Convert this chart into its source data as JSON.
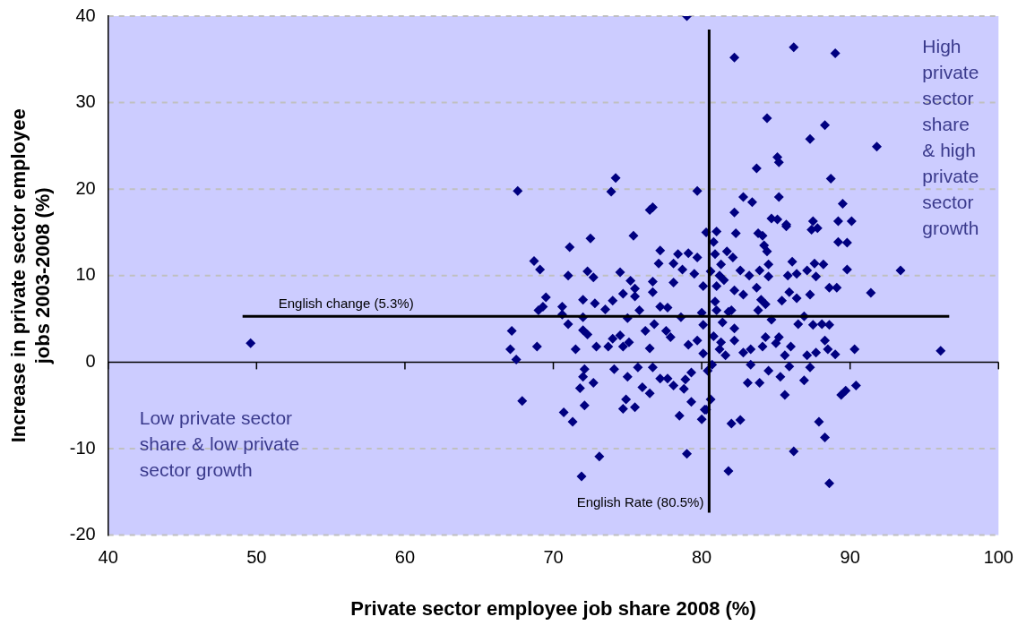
{
  "chart_data": {
    "type": "scatter",
    "xlabel": "Private sector employee job share 2008 (%)",
    "ylabel": "Increase in private sector employee jobs 2003-2008 (%)",
    "xlim": [
      40,
      100
    ],
    "xticks": [
      40,
      50,
      60,
      70,
      80,
      90,
      100
    ],
    "ylim": [
      -20,
      40
    ],
    "yticks": [
      -20,
      -10,
      0,
      10,
      20,
      30,
      40
    ],
    "grid": "y",
    "marker": "diamond",
    "legend": false,
    "ref_lines": [
      {
        "axis": "y",
        "value": 5.3,
        "label": "English change (5.3%)",
        "color": "#000000"
      },
      {
        "axis": "x",
        "value": 80.5,
        "label": "English Rate (80.5%)",
        "color": "#000000"
      }
    ],
    "annotations": [
      "High private sector share & high private sector growth",
      "Low private sector share & low private sector growth"
    ],
    "series": [
      {
        "color": "#000080",
        "x": [
          49.6,
          79,
          67.6,
          74.2,
          73.9,
          79.7,
          76.5,
          76.7,
          75.4,
          72.5,
          71.1,
          68.7,
          69.1,
          71.0,
          72.3,
          72.7,
          74.5,
          75.2,
          76.7,
          77.2,
          77.1,
          78.4,
          79.1,
          79.7,
          80.3,
          78.1,
          78.7,
          78.1,
          79.5,
          76.7,
          75.5,
          75.5,
          74.7,
          69.5,
          69.0,
          69.3,
          70.6,
          72.0,
          72.8,
          74.0,
          73.5,
          70.6,
          72.0,
          75.8,
          77.2,
          77.7,
          78.6,
          75.0,
          71.0,
          72.0,
          72.3,
          67.2,
          76.8,
          76.2,
          77.6,
          77.9,
          67.1,
          68.9,
          71.5,
          72.9,
          73.7,
          74.0,
          74.5,
          74.7,
          75.1,
          76.5,
          79.1,
          79.7,
          80.0,
          80.1,
          80.1,
          67.5,
          72.1,
          72.0,
          72.7,
          71.8,
          74.1,
          75.0,
          75.7,
          76.0,
          76.5,
          74.9,
          75.5,
          74.7,
          76.7,
          77.2,
          77.7,
          78.1,
          78.9,
          78.8,
          79.3,
          78.5,
          80.0,
          80.2,
          79.3,
          67.9,
          70.7,
          71.3,
          72.1,
          73.1,
          71.9,
          79.0,
          82.3,
          81.0,
          80.8,
          83.8,
          84.1,
          85.7,
          87.4,
          87.8,
          89.2,
          89.8,
          84.2,
          84.4,
          81.7,
          82.1,
          89.8,
          93.4,
          91.4,
          88.6,
          89.1,
          86.1,
          87.6,
          88.2,
          85.8,
          86.4,
          87.1,
          87.7,
          84.5,
          84.5,
          83.9,
          82.6,
          83.2,
          81.2,
          81.0,
          82.2,
          82.8,
          83.7,
          84.0,
          84.3,
          85.4,
          85.9,
          86.4,
          87.3,
          83.8,
          81.0,
          82.0,
          81.4,
          82.2,
          84.7,
          86.5,
          86.9,
          87.5,
          88.1,
          88.6,
          90.3,
          96.1,
          88.3,
          88.5,
          89.0,
          87.7,
          87.1,
          86.0,
          85.6,
          84.3,
          84.1,
          85.0,
          85.2,
          83.3,
          82.8,
          81.2,
          81.6,
          82.2,
          83.3,
          84.5,
          85.9,
          87.3,
          83.1,
          83.9,
          85.3,
          86.9,
          85.6,
          89.4,
          89.7,
          90.4,
          82.0,
          82.6,
          87.9,
          88.3,
          86.2,
          81.8,
          88.6,
          80.4,
          80.6,
          80.3,
          82.2,
          86.2,
          89.0,
          84.4,
          88.3,
          87.3,
          91.8,
          85.1,
          85.2,
          83.7,
          88.7,
          82.8,
          83.4,
          85.2,
          82.2,
          89.5,
          84.7,
          85.1,
          85.7,
          87.5,
          89.2,
          90.1,
          80.9,
          80.6,
          81.3,
          81.5,
          80.9,
          81.8,
          80.8,
          81.3,
          80.1,
          80.7
        ],
        "values": [
          2.2,
          40,
          19.8,
          21.3,
          19.7,
          19.8,
          17.6,
          17.9,
          14.6,
          14.3,
          13.3,
          11.7,
          10.7,
          10.0,
          10.5,
          9.8,
          10.4,
          9.4,
          9.3,
          12.9,
          11.4,
          12.5,
          12.6,
          12.1,
          15.0,
          11.4,
          10.7,
          9.2,
          10.2,
          8.1,
          8.5,
          7.6,
          7.9,
          7.5,
          6.0,
          6.4,
          6.4,
          7.2,
          6.8,
          7.1,
          6.1,
          5.5,
          5.2,
          6.0,
          6.4,
          6.3,
          5.2,
          5.1,
          4.4,
          3.7,
          3.2,
          3.6,
          4.4,
          3.6,
          3.6,
          2.9,
          1.5,
          1.8,
          1.5,
          1.8,
          1.8,
          2.7,
          3.1,
          1.8,
          2.3,
          1.6,
          2.0,
          2.5,
          5.7,
          4.3,
          8.8,
          0.3,
          -0.8,
          -1.7,
          -2.4,
          -3.0,
          -0.8,
          -1.7,
          -0.6,
          -2.9,
          -3.6,
          -4.3,
          -5.2,
          -5.4,
          -0.6,
          -1.9,
          -1.9,
          -2.7,
          -2.0,
          -3.1,
          -4.6,
          -6.2,
          -6.6,
          -5.5,
          -1.2,
          -4.5,
          -5.8,
          -6.9,
          -5.0,
          -10.9,
          -13.2,
          -10.6,
          14.9,
          15.1,
          13.9,
          14.9,
          14.6,
          15.7,
          15.3,
          15.5,
          13.9,
          13.8,
          13.5,
          12.8,
          12.8,
          12.1,
          10.7,
          10.6,
          8.0,
          8.6,
          8.6,
          11.6,
          11.4,
          11.3,
          10.0,
          10.2,
          10.6,
          9.9,
          11.3,
          9.9,
          10.6,
          10.6,
          10.0,
          10.0,
          8.8,
          8.3,
          7.8,
          8.6,
          7.2,
          6.7,
          7.1,
          8.1,
          7.4,
          7.8,
          6.0,
          6.0,
          6.0,
          4.6,
          3.9,
          4.9,
          4.4,
          5.3,
          4.3,
          4.4,
          4.3,
          1.5,
          1.3,
          2.5,
          1.5,
          0.9,
          1.1,
          0.8,
          1.8,
          0.8,
          2.9,
          1.8,
          2.2,
          2.9,
          1.5,
          1.1,
          1.5,
          0.8,
          2.5,
          -0.3,
          -1.0,
          -0.5,
          -0.6,
          -2.4,
          -2.4,
          -1.7,
          -2.1,
          -3.8,
          -3.8,
          -3.3,
          -2.7,
          -7.1,
          -6.7,
          -6.9,
          -8.7,
          -10.3,
          -12.6,
          -14.0,
          -1.0,
          -4.3,
          -5.5,
          35.2,
          36.4,
          35.7,
          28.2,
          27.4,
          25.8,
          24.9,
          23.7,
          23.1,
          22.4,
          21.2,
          19.1,
          18.5,
          19.1,
          17.3,
          18.3,
          16.6,
          16.5,
          15.9,
          16.3,
          16.3,
          16.3,
          12.5,
          10.5,
          11.3,
          9.5,
          7.0,
          5.8,
          3.0,
          2.3,
          1.0,
          -0.3
        ]
      }
    ]
  }
}
